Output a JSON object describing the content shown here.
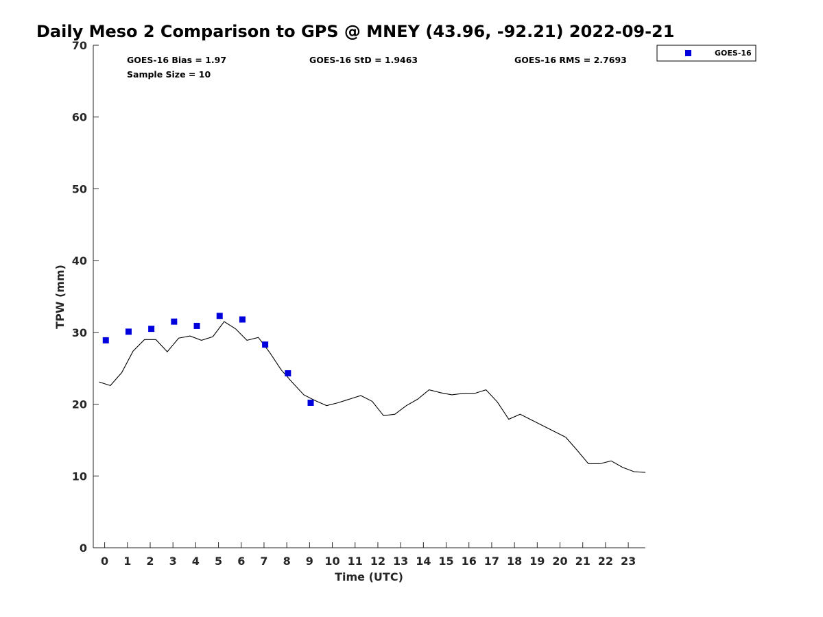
{
  "title": "Daily Meso 2 Comparison to GPS @ MNEY (43.96, -92.21) 2022-09-21",
  "stats": {
    "bias": "GOES-16 Bias = 1.97",
    "std": "GOES-16 StD = 1.9463",
    "rms": "GOES-16 RMS = 2.7693",
    "sample": "Sample Size = 10"
  },
  "legend": {
    "label": "GOES-16"
  },
  "colors": {
    "goes": "#0000dd",
    "gps_line": "#000000",
    "axis": "#262626"
  },
  "chart_data": {
    "type": "line",
    "xlabel": "Time (UTC)",
    "ylabel": "TPW (mm)",
    "xlim": [
      -0.5,
      23.75
    ],
    "ylim": [
      0,
      70
    ],
    "xticks": [
      0,
      1,
      2,
      3,
      4,
      5,
      6,
      7,
      8,
      9,
      10,
      11,
      12,
      13,
      14,
      15,
      16,
      17,
      18,
      19,
      20,
      21,
      22,
      23
    ],
    "yticks": [
      0,
      10,
      20,
      30,
      40,
      50,
      60,
      70
    ],
    "grid": false,
    "legend_position": "outside-top-right",
    "series": [
      {
        "kind": "line",
        "x": [
          -0.25,
          0.25,
          0.75,
          1.25,
          1.75,
          2.25,
          2.75,
          3.25,
          3.75,
          4.25,
          4.75,
          5.25,
          5.75,
          6.25,
          6.75,
          7.25,
          7.75,
          8.25,
          8.75,
          9.25,
          9.75,
          10.25,
          10.75,
          11.25,
          11.75,
          12.25,
          12.75,
          13.25,
          13.75,
          14.25,
          14.75,
          15.25,
          15.75,
          16.25,
          16.75,
          17.25,
          17.75,
          18.25,
          18.75,
          19.25,
          19.75,
          20.25,
          20.75,
          21.25,
          21.75,
          22.25,
          22.75,
          23.25,
          23.75
        ],
        "y": [
          23.1,
          22.6,
          24.4,
          27.4,
          29.0,
          29.0,
          27.3,
          29.2,
          29.5,
          28.9,
          29.4,
          31.5,
          30.5,
          28.9,
          29.3,
          27.2,
          24.8,
          23.0,
          21.3,
          20.5,
          19.8,
          20.2,
          20.7,
          21.2,
          20.4,
          18.4,
          18.6,
          19.8,
          20.7,
          22.0,
          21.6,
          21.3,
          21.5,
          21.5,
          22.0,
          20.3,
          17.9,
          18.6,
          17.8,
          17.0,
          16.2,
          15.4,
          13.6,
          11.7,
          11.7,
          12.1,
          11.2,
          10.6,
          10.5
        ]
      },
      {
        "name": "GOES-16",
        "kind": "scatter",
        "marker": "square",
        "x": [
          0.05,
          1.05,
          2.05,
          3.05,
          4.05,
          5.05,
          6.05,
          7.05,
          8.05,
          9.05
        ],
        "y": [
          28.9,
          30.1,
          30.5,
          31.5,
          30.9,
          32.3,
          31.8,
          28.3,
          24.3,
          20.2
        ]
      }
    ]
  }
}
